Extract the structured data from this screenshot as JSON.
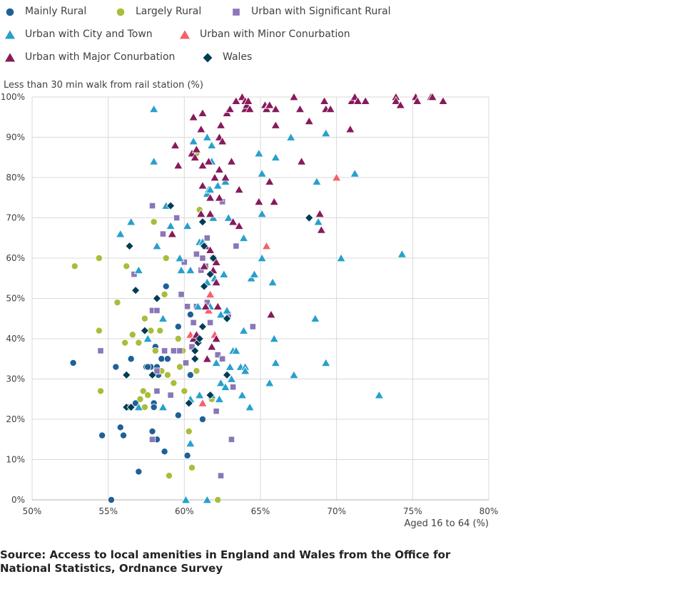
{
  "source_text": "Source: Access to local amenities in England and Wales from the Office for National Statistics, Ordnance Survey",
  "chart_data": {
    "type": "scatter",
    "xlabel": "Aged 16 to 64 (%)",
    "ylabel": "Less than 30 min walk from rail station (%)",
    "xlim": [
      50,
      80
    ],
    "ylim": [
      0,
      100
    ],
    "x_ticks": [
      "50%",
      "55%",
      "60%",
      "65%",
      "70%",
      "75%",
      "80%"
    ],
    "y_ticks": [
      "0%",
      "10%",
      "20%",
      "30%",
      "40%",
      "50%",
      "60%",
      "70%",
      "80%",
      "90%",
      "100%"
    ],
    "grid": true,
    "legend_position": "top",
    "series": [
      {
        "name": "Mainly Rural",
        "marker": "circle",
        "color": "#206095",
        "points": [
          [
            52.7,
            34
          ],
          [
            55.2,
            0
          ],
          [
            54.6,
            16
          ],
          [
            55.5,
            33
          ],
          [
            55.8,
            18
          ],
          [
            56.0,
            16
          ],
          [
            56.3,
            23
          ],
          [
            56.5,
            35
          ],
          [
            57.0,
            7
          ],
          [
            56.8,
            24
          ],
          [
            57.5,
            33
          ],
          [
            57.8,
            33
          ],
          [
            57.9,
            17
          ],
          [
            58.0,
            24
          ],
          [
            58.0,
            23
          ],
          [
            58.1,
            38
          ],
          [
            58.2,
            33
          ],
          [
            58.2,
            15
          ],
          [
            58.3,
            31
          ],
          [
            58.5,
            35
          ],
          [
            58.7,
            12
          ],
          [
            58.8,
            53
          ],
          [
            58.9,
            35
          ],
          [
            59.6,
            43
          ],
          [
            59.6,
            21
          ],
          [
            60.2,
            11
          ],
          [
            60.4,
            46
          ],
          [
            60.4,
            31
          ],
          [
            61.2,
            20
          ],
          [
            57.6,
            33
          ]
        ]
      },
      {
        "name": "Largely Rural",
        "marker": "circle",
        "color": "#a8bd3a",
        "points": [
          [
            52.8,
            58
          ],
          [
            54.4,
            60
          ],
          [
            54.4,
            42
          ],
          [
            54.5,
            27
          ],
          [
            55.6,
            49
          ],
          [
            56.1,
            39
          ],
          [
            56.2,
            58
          ],
          [
            56.6,
            41
          ],
          [
            57.1,
            25
          ],
          [
            57.0,
            39
          ],
          [
            57.3,
            27
          ],
          [
            57.4,
            45
          ],
          [
            57.4,
            23
          ],
          [
            57.6,
            26
          ],
          [
            57.8,
            42
          ],
          [
            58.0,
            69
          ],
          [
            58.1,
            37
          ],
          [
            58.5,
            32
          ],
          [
            58.7,
            51
          ],
          [
            58.8,
            60
          ],
          [
            58.9,
            31
          ],
          [
            59.0,
            6
          ],
          [
            59.3,
            29
          ],
          [
            59.6,
            40
          ],
          [
            59.9,
            37
          ],
          [
            60.0,
            27
          ],
          [
            60.3,
            17
          ],
          [
            60.5,
            8
          ],
          [
            60.8,
            32
          ],
          [
            60.8,
            86
          ],
          [
            61.0,
            72
          ],
          [
            62.2,
            0
          ],
          [
            61.8,
            25
          ],
          [
            58.4,
            42
          ],
          [
            59.7,
            33
          ]
        ]
      },
      {
        "name": "Urban with Significant Rural",
        "marker": "square",
        "color": "#8a77b8",
        "points": [
          [
            54.5,
            37
          ],
          [
            56.7,
            56
          ],
          [
            57.9,
            47
          ],
          [
            57.9,
            73
          ],
          [
            57.9,
            15
          ],
          [
            58.2,
            47
          ],
          [
            58.2,
            32
          ],
          [
            58.2,
            27
          ],
          [
            58.6,
            66
          ],
          [
            58.7,
            37
          ],
          [
            59.1,
            26
          ],
          [
            59.3,
            37
          ],
          [
            59.5,
            70
          ],
          [
            59.7,
            37
          ],
          [
            59.8,
            51
          ],
          [
            60.0,
            59
          ],
          [
            60.1,
            34
          ],
          [
            60.2,
            48
          ],
          [
            60.5,
            38
          ],
          [
            60.6,
            44
          ],
          [
            60.8,
            61
          ],
          [
            60.8,
            48
          ],
          [
            61.1,
            57
          ],
          [
            61.2,
            60
          ],
          [
            61.4,
            58
          ],
          [
            61.5,
            65
          ],
          [
            61.5,
            49
          ],
          [
            61.7,
            44
          ],
          [
            61.9,
            60
          ],
          [
            62.1,
            22
          ],
          [
            62.2,
            36
          ],
          [
            62.4,
            6
          ],
          [
            62.5,
            35
          ],
          [
            62.5,
            74
          ],
          [
            62.9,
            46
          ],
          [
            63.1,
            15
          ],
          [
            63.2,
            28
          ],
          [
            63.4,
            63
          ],
          [
            64.5,
            43
          ]
        ]
      },
      {
        "name": "Urban with City and Town",
        "marker": "triangle",
        "color": "#27a0cc",
        "points": [
          [
            55.8,
            66
          ],
          [
            56.5,
            69
          ],
          [
            57.0,
            57
          ],
          [
            57.0,
            23
          ],
          [
            57.6,
            40
          ],
          [
            58.0,
            97
          ],
          [
            58.0,
            84
          ],
          [
            58.2,
            63
          ],
          [
            58.6,
            23
          ],
          [
            58.6,
            45
          ],
          [
            58.8,
            73
          ],
          [
            59.1,
            68
          ],
          [
            59.7,
            60
          ],
          [
            59.8,
            57
          ],
          [
            60.1,
            0
          ],
          [
            60.2,
            68
          ],
          [
            60.4,
            57
          ],
          [
            60.4,
            25
          ],
          [
            60.4,
            14
          ],
          [
            60.6,
            89
          ],
          [
            60.9,
            48
          ],
          [
            61.0,
            64
          ],
          [
            61.0,
            26
          ],
          [
            61.2,
            64
          ],
          [
            61.5,
            0
          ],
          [
            61.5,
            90
          ],
          [
            61.5,
            54
          ],
          [
            61.5,
            76
          ],
          [
            61.6,
            77
          ],
          [
            61.7,
            48
          ],
          [
            61.7,
            77
          ],
          [
            61.8,
            84
          ],
          [
            61.8,
            88
          ],
          [
            61.8,
            26
          ],
          [
            61.9,
            70
          ],
          [
            62.0,
            55
          ],
          [
            62.1,
            34
          ],
          [
            62.2,
            78
          ],
          [
            62.3,
            25
          ],
          [
            62.4,
            29
          ],
          [
            62.4,
            46
          ],
          [
            62.6,
            56
          ],
          [
            62.7,
            28
          ],
          [
            62.7,
            79
          ],
          [
            62.8,
            47
          ],
          [
            62.9,
            70
          ],
          [
            63.0,
            33
          ],
          [
            63.1,
            30
          ],
          [
            63.2,
            37
          ],
          [
            63.4,
            37
          ],
          [
            63.7,
            33
          ],
          [
            63.8,
            26
          ],
          [
            63.9,
            65
          ],
          [
            63.9,
            42
          ],
          [
            64.0,
            33
          ],
          [
            64.0,
            32
          ],
          [
            64.3,
            23
          ],
          [
            64.4,
            55
          ],
          [
            64.6,
            56
          ],
          [
            64.9,
            86
          ],
          [
            65.1,
            81
          ],
          [
            65.1,
            71
          ],
          [
            65.1,
            60
          ],
          [
            65.6,
            29
          ],
          [
            65.8,
            54
          ],
          [
            65.9,
            40
          ],
          [
            66.0,
            34
          ],
          [
            66.0,
            85
          ],
          [
            67.0,
            90
          ],
          [
            67.2,
            31
          ],
          [
            68.6,
            45
          ],
          [
            68.7,
            79
          ],
          [
            68.8,
            69
          ],
          [
            69.3,
            91
          ],
          [
            69.3,
            34
          ],
          [
            70.3,
            60
          ],
          [
            71.2,
            81
          ],
          [
            72.8,
            26
          ],
          [
            74.3,
            61
          ]
        ]
      },
      {
        "name": "Urban with Minor Conurbation",
        "marker": "triangle",
        "color": "#f66068",
        "points": [
          [
            60.4,
            41
          ],
          [
            61.2,
            24
          ],
          [
            61.6,
            47
          ],
          [
            61.7,
            51
          ],
          [
            62.0,
            41
          ],
          [
            65.4,
            63
          ],
          [
            70.0,
            80
          ]
        ]
      },
      {
        "name": "Urban with Major Conurbation",
        "marker": "triangle",
        "color": "#871a5b",
        "points": [
          [
            59.2,
            66
          ],
          [
            59.4,
            88
          ],
          [
            59.6,
            83
          ],
          [
            60.5,
            86
          ],
          [
            60.6,
            95
          ],
          [
            60.6,
            40
          ],
          [
            60.7,
            85
          ],
          [
            60.8,
            87
          ],
          [
            60.8,
            41
          ],
          [
            61.1,
            71
          ],
          [
            61.1,
            92
          ],
          [
            61.2,
            83
          ],
          [
            61.2,
            96
          ],
          [
            61.2,
            78
          ],
          [
            61.3,
            58
          ],
          [
            61.4,
            63
          ],
          [
            61.4,
            48
          ],
          [
            61.5,
            35
          ],
          [
            61.6,
            84
          ],
          [
            61.7,
            62
          ],
          [
            61.7,
            75
          ],
          [
            61.7,
            71
          ],
          [
            61.8,
            38
          ],
          [
            61.9,
            57
          ],
          [
            62.0,
            80
          ],
          [
            62.1,
            54
          ],
          [
            62.1,
            59
          ],
          [
            62.1,
            40
          ],
          [
            62.2,
            48
          ],
          [
            62.3,
            75
          ],
          [
            62.3,
            82
          ],
          [
            62.3,
            90
          ],
          [
            62.4,
            93
          ],
          [
            62.5,
            89
          ],
          [
            62.7,
            80
          ],
          [
            62.8,
            96
          ],
          [
            63.0,
            97
          ],
          [
            63.1,
            84
          ],
          [
            63.2,
            69
          ],
          [
            63.4,
            99
          ],
          [
            63.6,
            68
          ],
          [
            63.6,
            77
          ],
          [
            63.8,
            100
          ],
          [
            64.0,
            99
          ],
          [
            64.0,
            97
          ],
          [
            64.1,
            98
          ],
          [
            64.2,
            99
          ],
          [
            64.3,
            97
          ],
          [
            64.9,
            74
          ],
          [
            65.3,
            98
          ],
          [
            65.4,
            97
          ],
          [
            65.6,
            79
          ],
          [
            65.6,
            98
          ],
          [
            65.7,
            46
          ],
          [
            65.9,
            74
          ],
          [
            66.0,
            97
          ],
          [
            66.0,
            93
          ],
          [
            67.2,
            100
          ],
          [
            67.6,
            97
          ],
          [
            67.7,
            84
          ],
          [
            68.2,
            94
          ],
          [
            68.9,
            71
          ],
          [
            69.0,
            67
          ],
          [
            69.2,
            99
          ],
          [
            69.3,
            97
          ],
          [
            69.6,
            97
          ],
          [
            70.9,
            92
          ],
          [
            71.0,
            99
          ],
          [
            71.2,
            100
          ],
          [
            71.4,
            99
          ],
          [
            71.9,
            99
          ],
          [
            73.9,
            100
          ],
          [
            73.9,
            99
          ],
          [
            74.2,
            98
          ],
          [
            75.2,
            100
          ],
          [
            75.3,
            99
          ],
          [
            76.2,
            100
          ],
          [
            76.3,
            100
          ],
          [
            77.0,
            99
          ]
        ]
      },
      {
        "name": "Wales",
        "marker": "diamond",
        "color": "#003c57",
        "points": [
          [
            56.2,
            31
          ],
          [
            56.2,
            23
          ],
          [
            56.4,
            63
          ],
          [
            56.5,
            23
          ],
          [
            56.8,
            52
          ],
          [
            57.4,
            42
          ],
          [
            57.9,
            31
          ],
          [
            58.2,
            50
          ],
          [
            59.1,
            73
          ],
          [
            60.3,
            24
          ],
          [
            60.7,
            37
          ],
          [
            60.7,
            35
          ],
          [
            60.9,
            39
          ],
          [
            61.0,
            40
          ],
          [
            61.2,
            69
          ],
          [
            61.3,
            63
          ],
          [
            61.3,
            53
          ],
          [
            61.2,
            43
          ],
          [
            61.7,
            26
          ],
          [
            61.7,
            56
          ],
          [
            61.9,
            60
          ],
          [
            62.8,
            45
          ],
          [
            62.8,
            31
          ],
          [
            68.2,
            70
          ]
        ]
      }
    ]
  }
}
